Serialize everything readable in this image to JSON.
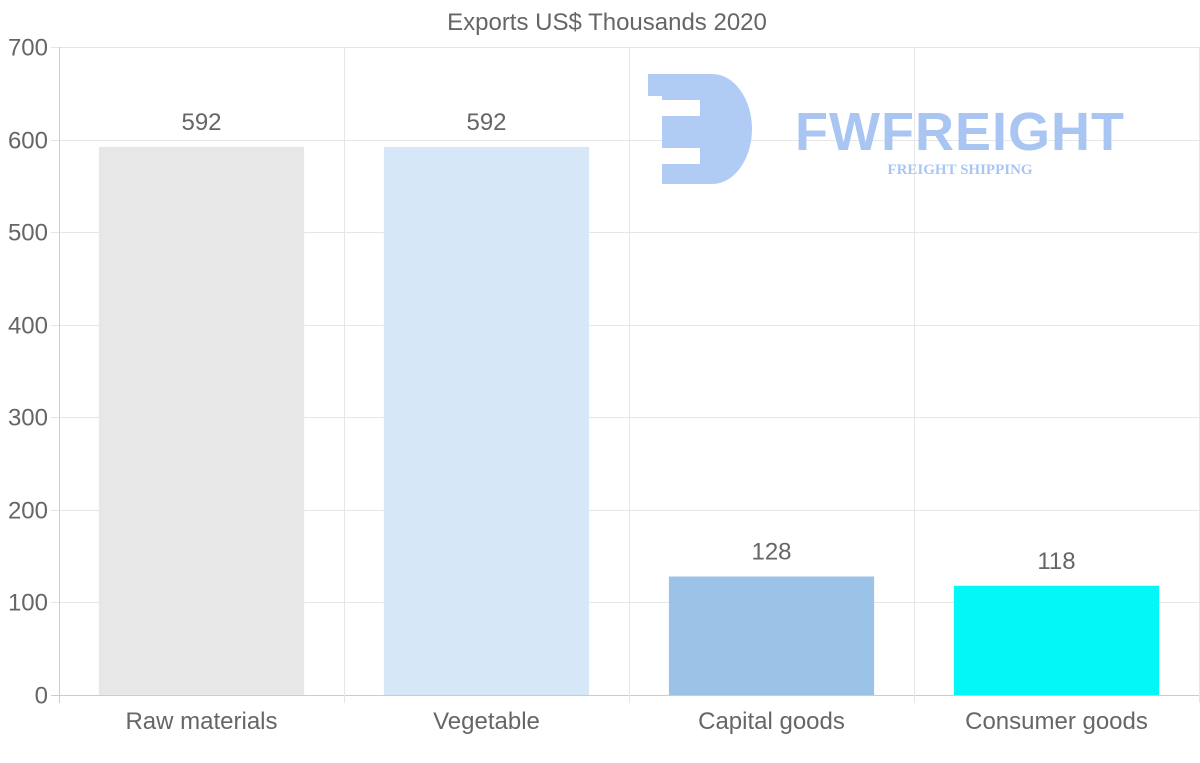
{
  "chart_data": {
    "type": "bar",
    "title": "Exports US$ Thousands 2020",
    "categories": [
      "Raw materials",
      "Vegetable",
      "Capital goods",
      "Consumer goods"
    ],
    "values": [
      592,
      592,
      128,
      118
    ],
    "value_labels": [
      "592",
      "592",
      "128",
      "118"
    ],
    "colors": [
      "#e7e7e7",
      "#d6e7f8",
      "#9ac3e7",
      "#03f7f6"
    ],
    "ylim": [
      0,
      700
    ],
    "yticks": [
      0,
      100,
      200,
      300,
      400,
      500,
      600,
      700
    ],
    "xlabel": "",
    "ylabel": "",
    "grid": true,
    "legend": "none"
  },
  "watermark": {
    "name": "FWFREIGHT",
    "tagline": "FREIGHT SHIPPING",
    "color": "#a9c6f3"
  }
}
